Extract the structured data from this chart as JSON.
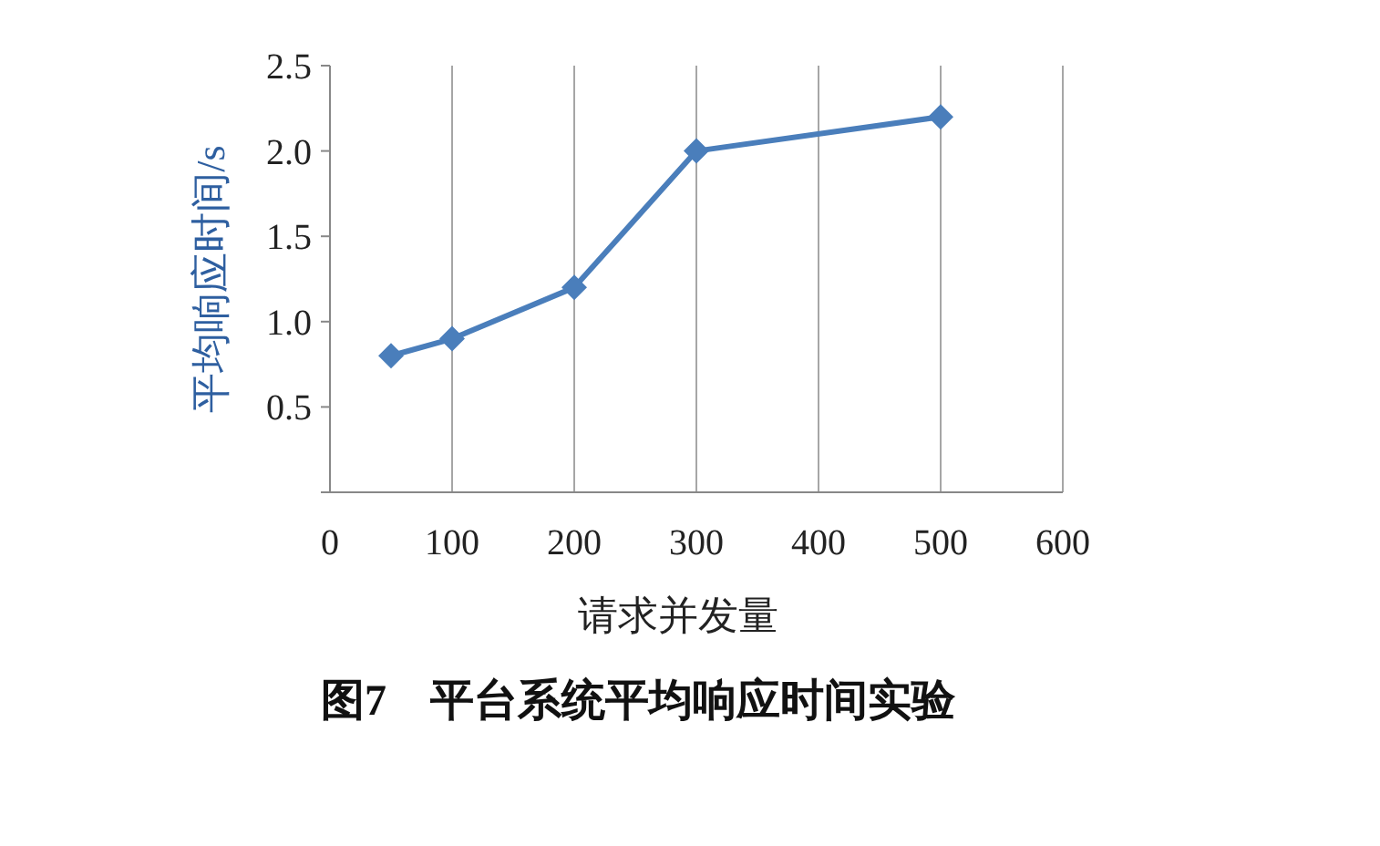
{
  "chart_data": {
    "type": "line",
    "title": "图7　平台系统平均响应时间实验",
    "xlabel": "请求并发量",
    "ylabel": "平均响应时间/s",
    "x": [
      50,
      100,
      200,
      300,
      500
    ],
    "series": [
      {
        "color": "#4a7ebb",
        "values": [
          0.8,
          0.9,
          1.2,
          2.0,
          2.2
        ]
      }
    ],
    "xlim": [
      0,
      600
    ],
    "xticks": [
      0,
      100,
      200,
      300,
      400,
      500,
      600
    ],
    "ylim": [
      0,
      2.5
    ],
    "yticks": [
      {
        "value": 0,
        "label": null
      },
      0.5,
      {
        "value": 1,
        "label": "1.0"
      },
      1.5,
      {
        "value": 2,
        "label": "2.0"
      },
      2.5
    ],
    "grid": "x",
    "marker": "diamond",
    "line_style": "solid"
  }
}
